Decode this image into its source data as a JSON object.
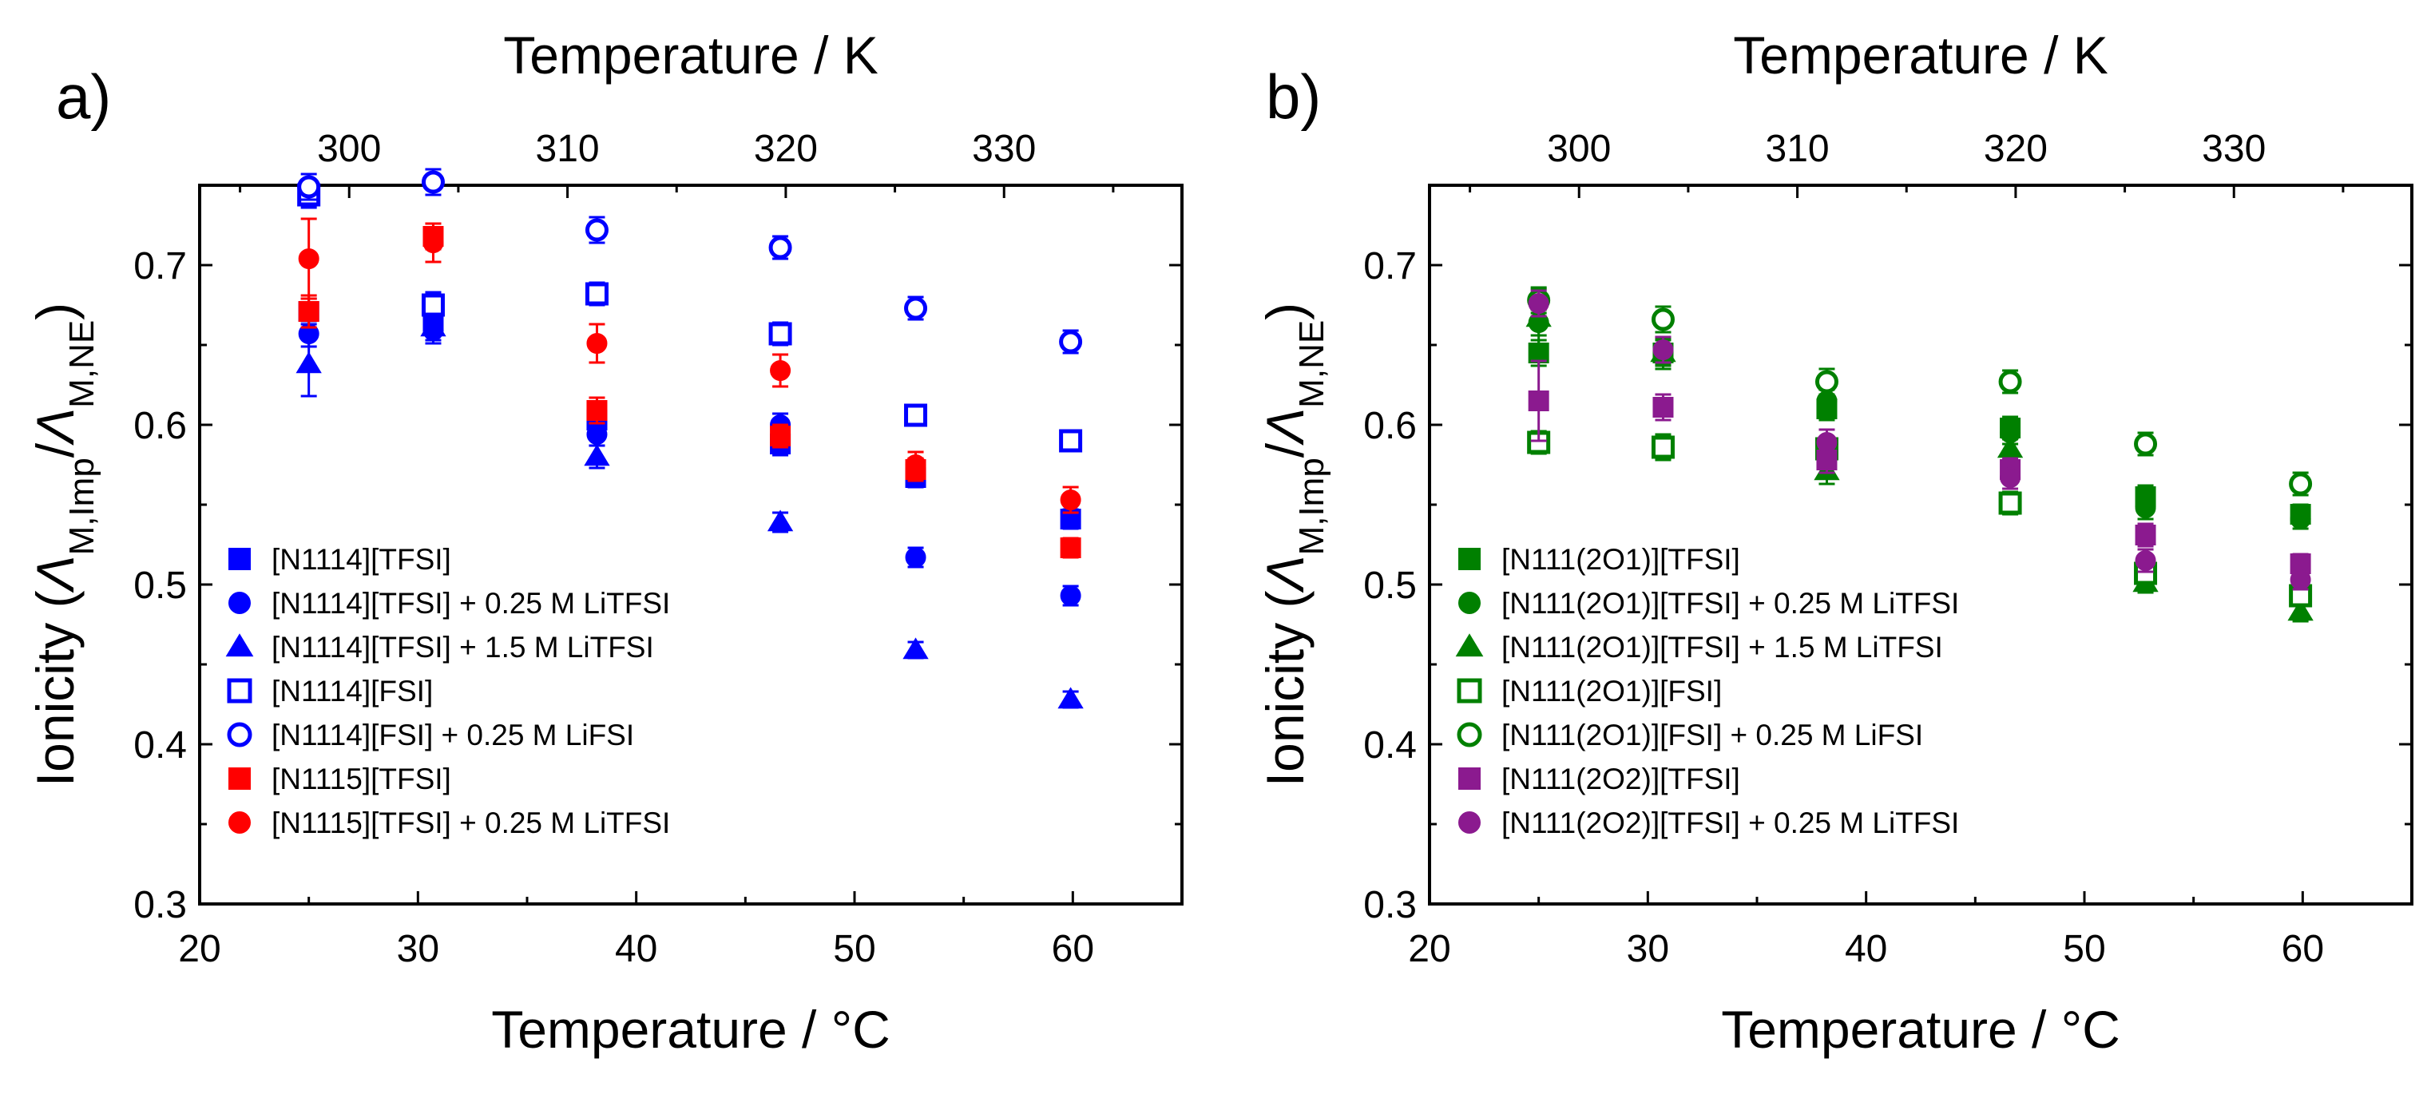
{
  "chart_data": [
    {
      "type": "scatter",
      "panel_label": "a)",
      "xlabel": "Temperature / °C",
      "x2label": "Temperature / K",
      "ylabel": "Ionicity (ΛM,Imp/ΛM,NE)",
      "ylabel_parts": {
        "prefix": "Ionicity (",
        "sym1": "Λ",
        "sub1": "M,Imp",
        "slash": "/",
        "sym2": "Λ",
        "sub2": "M,NE",
        "suffix": ")"
      },
      "xlim": [
        20,
        65
      ],
      "ylim": [
        0.3,
        0.75
      ],
      "xticks": [
        20,
        30,
        40,
        50,
        60
      ],
      "yticks": [
        0.3,
        0.4,
        0.5,
        0.6,
        0.7
      ],
      "x2ticks": [
        300,
        310,
        320,
        330
      ],
      "legend_position": "bottom-left",
      "series": [
        {
          "name": "[N1114][TFSI]",
          "color": "#0000FF",
          "marker": "square",
          "filled": true,
          "x": [
            25,
            30.7,
            38.2,
            46.6,
            52.8,
            59.9
          ],
          "y": [
            0.671,
            0.665,
            0.603,
            0.588,
            0.567,
            0.541
          ],
          "err": [
            0.008,
            0.008,
            0.007,
            0.007,
            0.006,
            0.006
          ]
        },
        {
          "name": "[N1114][TFSI] + 0.25 M LiTFSI",
          "color": "#0000FF",
          "marker": "circle",
          "filled": true,
          "x": [
            25,
            30.7,
            38.2,
            46.6,
            52.8,
            59.9
          ],
          "y": [
            0.657,
            0.659,
            0.594,
            0.6,
            0.517,
            0.493
          ],
          "err": [
            0.008,
            0.008,
            0.007,
            0.007,
            0.006,
            0.006
          ]
        },
        {
          "name": "[N1114][TFSI] + 1.5 M LiTFSI",
          "color": "#0000FF",
          "marker": "triangle",
          "filled": true,
          "x": [
            25,
            30.7,
            38.2,
            46.6,
            52.8,
            59.9
          ],
          "y": [
            0.638,
            0.661,
            0.58,
            0.539,
            0.459,
            0.428
          ],
          "err": [
            0.02,
            0.008,
            0.007,
            0.006,
            0.005,
            0.005
          ]
        },
        {
          "name": "[N1114][FSI]",
          "color": "#0000FF",
          "marker": "square",
          "filled": false,
          "x": [
            25,
            30.7,
            38.2,
            46.6,
            52.8,
            59.9
          ],
          "y": [
            0.744,
            0.675,
            0.682,
            0.657,
            0.606,
            0.59
          ],
          "err": [
            0.008,
            0.008,
            0.007,
            0.007,
            0.006,
            0.006
          ]
        },
        {
          "name": "[N1114][FSI] + 0.25 M LiFSI",
          "color": "#0000FF",
          "marker": "circle",
          "filled": false,
          "x": [
            25,
            30.7,
            38.2,
            46.6,
            52.8,
            59.9
          ],
          "y": [
            0.749,
            0.752,
            0.722,
            0.711,
            0.673,
            0.652
          ],
          "err": [
            0.008,
            0.008,
            0.008,
            0.007,
            0.007,
            0.007
          ]
        },
        {
          "name": "[N1115][TFSI]",
          "color": "#FF0000",
          "marker": "square",
          "filled": true,
          "x": [
            25,
            30.7,
            38.2,
            46.6,
            52.8,
            59.9
          ],
          "y": [
            0.671,
            0.718,
            0.609,
            0.593,
            0.572,
            0.523
          ],
          "err": [
            0.01,
            0.008,
            0.008,
            0.007,
            0.007,
            0.006
          ]
        },
        {
          "name": "[N1115][TFSI] + 0.25 M LiTFSI",
          "color": "#FF0000",
          "marker": "circle",
          "filled": true,
          "x": [
            25,
            30.7,
            38.2,
            46.6,
            52.8,
            59.9
          ],
          "y": [
            0.704,
            0.714,
            0.651,
            0.634,
            0.575,
            0.553
          ],
          "err": [
            0.025,
            0.012,
            0.012,
            0.01,
            0.008,
            0.008
          ]
        }
      ]
    },
    {
      "type": "scatter",
      "panel_label": "b)",
      "xlabel": "Temperature / °C",
      "x2label": "Temperature / K",
      "ylabel": "Ionicity (ΛM,Imp/ΛM,NE)",
      "ylabel_parts": {
        "prefix": "Ionicity (",
        "sym1": "Λ",
        "sub1": "M,Imp",
        "slash": "/",
        "sym2": "Λ",
        "sub2": "M,NE",
        "suffix": ")"
      },
      "xlim": [
        20,
        65
      ],
      "ylim": [
        0.3,
        0.75
      ],
      "xticks": [
        20,
        30,
        40,
        50,
        60
      ],
      "yticks": [
        0.3,
        0.4,
        0.5,
        0.6,
        0.7
      ],
      "x2ticks": [
        300,
        310,
        320,
        330
      ],
      "legend_position": "bottom-left",
      "series": [
        {
          "name": "[N111(2O1)][TFSI]",
          "color": "#008000",
          "marker": "square",
          "filled": true,
          "x": [
            25,
            30.7,
            38.2,
            46.6,
            52.8,
            59.9
          ],
          "y": [
            0.645,
            0.645,
            0.61,
            0.598,
            0.555,
            0.544
          ],
          "err": [
            0.008,
            0.008,
            0.007,
            0.007,
            0.007,
            0.006
          ]
        },
        {
          "name": "[N111(2O1)][TFSI] + 0.25 M LiTFSI",
          "color": "#008000",
          "marker": "circle",
          "filled": true,
          "x": [
            25,
            30.7,
            38.2,
            46.6,
            52.8,
            59.9
          ],
          "y": [
            0.664,
            0.646,
            0.615,
            0.595,
            0.548,
            0.541
          ],
          "err": [
            0.008,
            0.008,
            0.007,
            0.007,
            0.007,
            0.006
          ]
        },
        {
          "name": "[N111(2O1)][TFSI] + 1.5 M LiTFSI",
          "color": "#008000",
          "marker": "triangle",
          "filled": true,
          "x": [
            25,
            30.7,
            38.2,
            46.6,
            52.8,
            59.9
          ],
          "y": [
            0.667,
            0.645,
            0.571,
            0.585,
            0.501,
            0.483
          ],
          "err": [
            0.018,
            0.01,
            0.008,
            0.008,
            0.006,
            0.006
          ]
        },
        {
          "name": "[N111(2O1)][FSI]",
          "color": "#008000",
          "marker": "square",
          "filled": false,
          "x": [
            25,
            30.7,
            38.2,
            46.6,
            52.8,
            59.9
          ],
          "y": [
            0.589,
            0.586,
            0.585,
            0.551,
            0.507,
            0.493
          ],
          "err": [
            0.007,
            0.008,
            0.007,
            0.007,
            0.006,
            0.006
          ]
        },
        {
          "name": "[N111(2O1)][FSI] + 0.25 M LiFSI",
          "color": "#008000",
          "marker": "circle",
          "filled": false,
          "x": [
            25,
            30.7,
            38.2,
            46.6,
            52.8,
            59.9
          ],
          "y": [
            0.678,
            0.666,
            0.627,
            0.627,
            0.588,
            0.563
          ],
          "err": [
            0.008,
            0.008,
            0.008,
            0.007,
            0.007,
            0.007
          ]
        },
        {
          "name": "[N111(2O2)][TFSI]",
          "color": "#8B1A8F",
          "marker": "square",
          "filled": true,
          "x": [
            25,
            30.7,
            38.2,
            46.6,
            52.8,
            59.9
          ],
          "y": [
            0.615,
            0.611,
            0.578,
            0.572,
            0.531,
            0.513
          ],
          "err": [
            0.025,
            0.008,
            0.008,
            0.007,
            0.007,
            0.006
          ]
        },
        {
          "name": "[N111(2O2)][TFSI] + 0.25 M LiTFSI",
          "color": "#8B1A8F",
          "marker": "circle",
          "filled": true,
          "x": [
            25,
            30.7,
            38.2,
            46.6,
            52.8,
            59.9
          ],
          "y": [
            0.676,
            0.647,
            0.589,
            0.567,
            0.515,
            0.503
          ],
          "err": [
            0.008,
            0.008,
            0.008,
            0.007,
            0.007,
            0.006
          ]
        }
      ]
    }
  ]
}
